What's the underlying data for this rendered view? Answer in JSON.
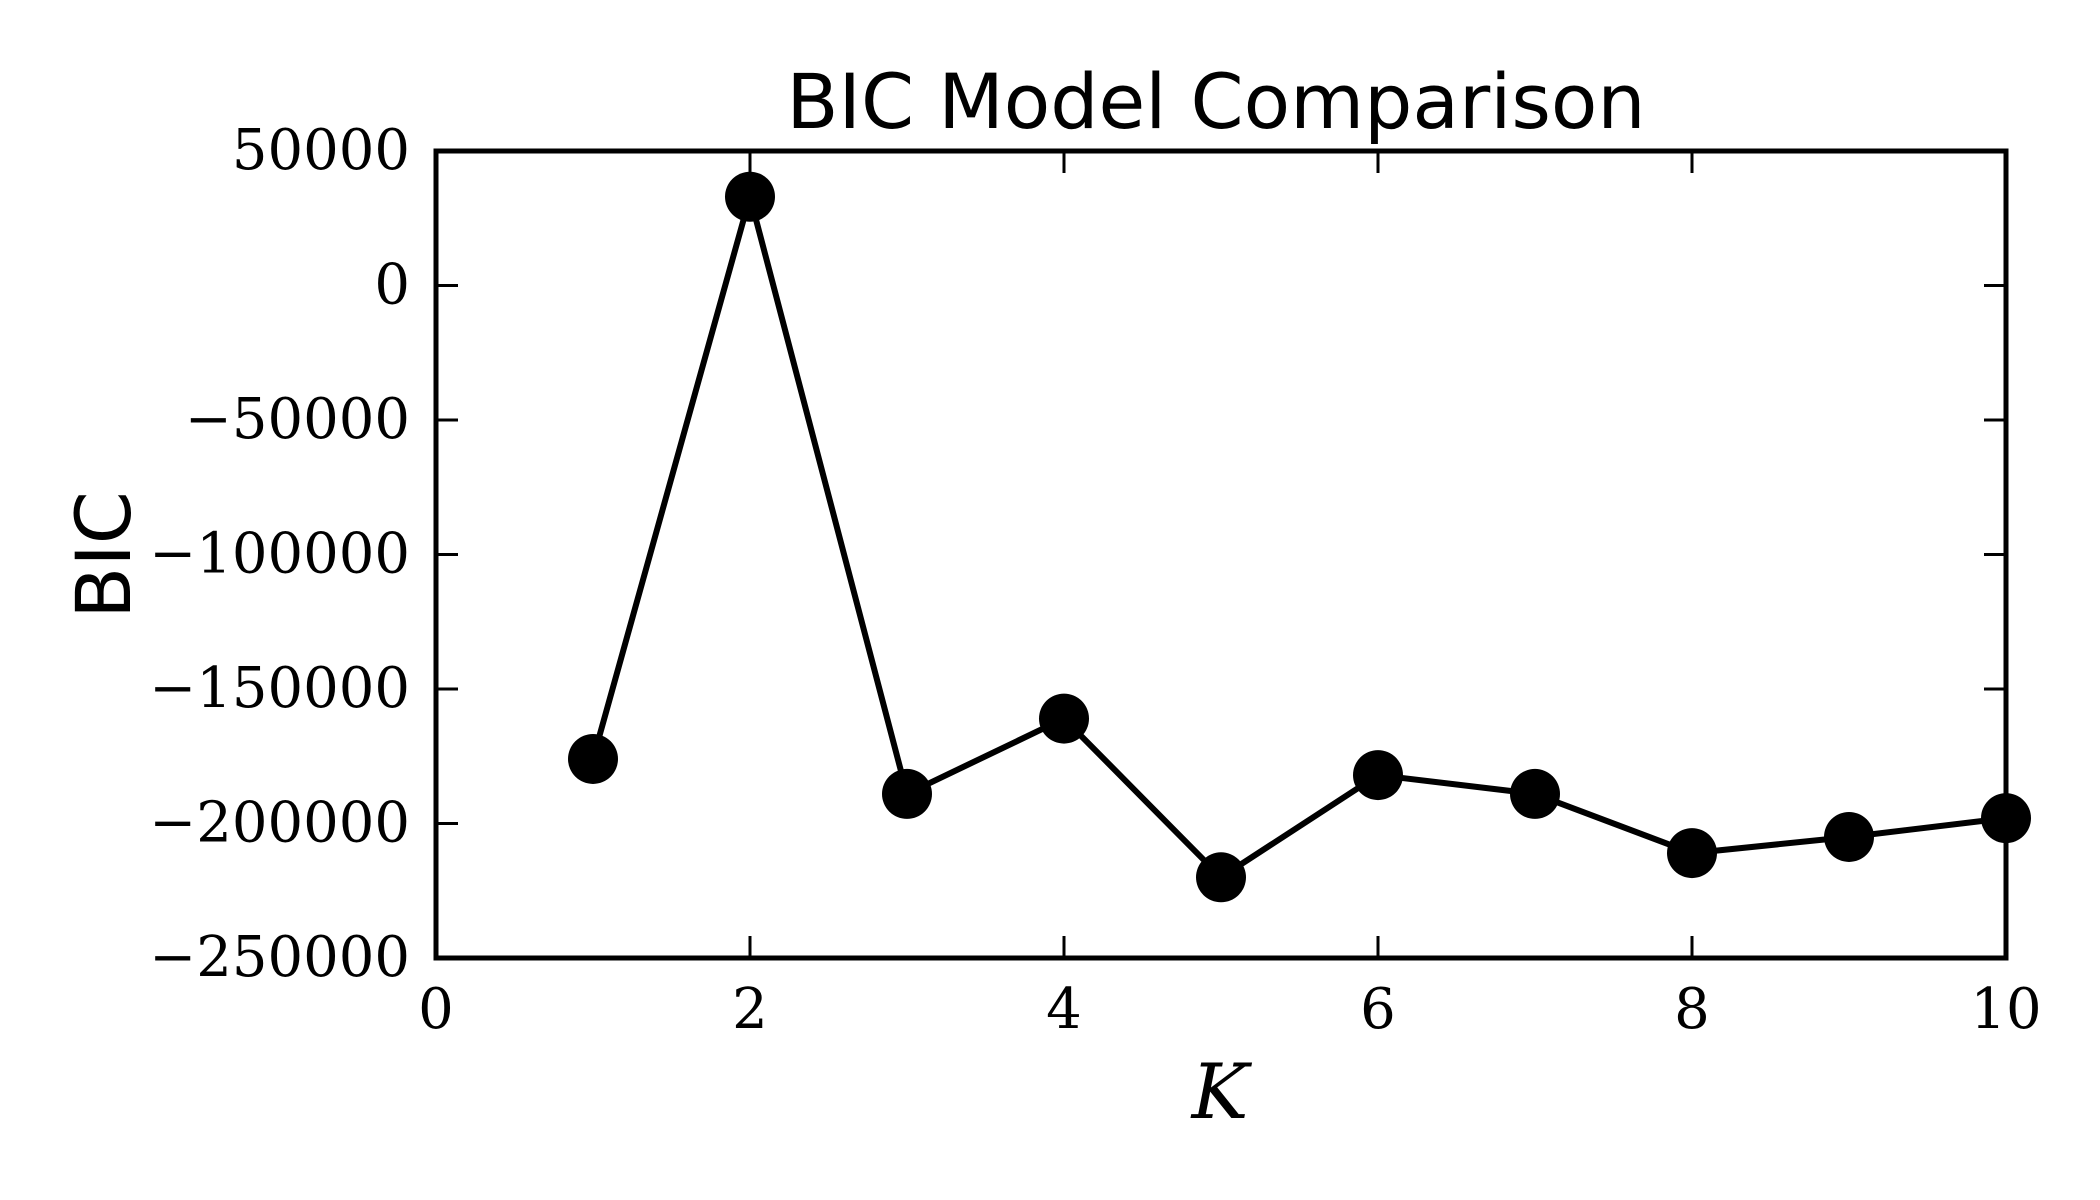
{
  "chart_data": {
    "type": "line",
    "title": "BIC Model Comparison",
    "xlabel": "K",
    "ylabel": "BIC",
    "xlim": [
      0,
      10
    ],
    "ylim": [
      -250000,
      50000
    ],
    "x_ticks": [
      0,
      2,
      4,
      6,
      8,
      10
    ],
    "y_ticks": [
      50000,
      0,
      -50000,
      -100000,
      -150000,
      -200000,
      -250000
    ],
    "x_tick_labels": [
      "0",
      "2",
      "4",
      "6",
      "8",
      "10"
    ],
    "y_tick_labels": [
      "50000",
      "0",
      "−50000",
      "−100000",
      "−150000",
      "−200000",
      "−250000"
    ],
    "grid": false,
    "legend": false,
    "colors": {
      "line": "#000000",
      "marker": "#000000"
    },
    "series": [
      {
        "x": [
          1,
          2,
          3,
          4,
          5,
          6,
          7,
          8,
          9,
          10
        ],
        "values": [
          -176000,
          33000,
          -189000,
          -161000,
          -220000,
          -182000,
          -189000,
          -211000,
          -205000,
          -198000
        ]
      }
    ]
  }
}
